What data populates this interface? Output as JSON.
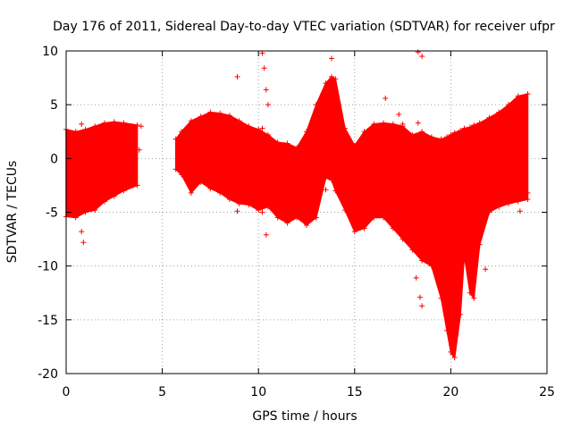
{
  "chart_data": {
    "type": "scatter",
    "title": "Day 176 of 2011, Sidereal Day-to-day VTEC variation (SDTVAR) for receiver ufpr",
    "xlabel": "GPS time / hours",
    "ylabel": "SDTVAR / TECUs",
    "xlim": [
      0,
      25
    ],
    "ylim": [
      -20,
      10
    ],
    "grid": true,
    "x_ticks": [
      "0",
      "5",
      "10",
      "15",
      "20",
      "25"
    ],
    "y_ticks": [
      "10",
      "5",
      "0",
      "-5",
      "-10",
      "-15",
      "-20"
    ],
    "series": [
      {
        "name": "SDTVAR",
        "color": "#ff0000",
        "marker": "plus",
        "band_x": [
          0.0,
          0.5,
          1.0,
          1.5,
          2.0,
          2.5,
          3.0,
          3.7,
          5.7,
          6.0,
          6.5,
          7.0,
          7.5,
          8.0,
          8.5,
          9.0,
          9.5,
          10.0,
          10.5,
          11.0,
          11.5,
          12.0,
          12.5,
          13.0,
          13.5,
          13.8,
          14.0,
          14.5,
          15.0,
          15.5,
          16.0,
          16.5,
          17.0,
          17.5,
          18.0,
          18.5,
          19.0,
          19.5,
          19.8,
          20.0,
          20.2,
          20.5,
          20.7,
          21.0,
          21.2,
          21.5,
          22.0,
          22.5,
          23.0,
          23.5,
          24.0
        ],
        "band_upper": [
          2.7,
          2.5,
          2.7,
          3.0,
          3.3,
          3.4,
          3.3,
          3.1,
          1.8,
          2.5,
          3.5,
          3.9,
          4.3,
          4.2,
          4.0,
          3.5,
          3.0,
          2.7,
          2.2,
          1.5,
          1.4,
          1.0,
          2.5,
          5.0,
          7.0,
          7.6,
          7.4,
          2.8,
          1.2,
          2.5,
          3.2,
          3.3,
          3.2,
          3.0,
          2.2,
          2.5,
          2.0,
          1.8,
          2.0,
          2.2,
          2.4,
          2.6,
          2.8,
          2.9,
          3.1,
          3.3,
          3.8,
          4.3,
          5.0,
          5.8,
          6.0
        ],
        "band_lower": [
          -5.4,
          -5.5,
          -5.0,
          -4.8,
          -4.0,
          -3.5,
          -3.0,
          -2.5,
          -1.0,
          -1.5,
          -3.2,
          -2.2,
          -2.8,
          -3.2,
          -3.8,
          -4.2,
          -4.3,
          -4.8,
          -4.5,
          -5.5,
          -6.0,
          -5.5,
          -6.2,
          -5.5,
          -1.8,
          -2.0,
          -3.0,
          -4.8,
          -6.8,
          -6.5,
          -5.5,
          -5.5,
          -6.5,
          -7.5,
          -8.5,
          -9.5,
          -10.0,
          -13.0,
          -16.0,
          -18.0,
          -18.5,
          -14.5,
          -9.0,
          -12.5,
          -13.0,
          -8.0,
          -5.0,
          -4.5,
          -4.2,
          -4.0,
          -3.8
        ],
        "outliers_x": [
          0.8,
          0.9,
          0.8,
          3.9,
          3.8,
          8.9,
          8.9,
          10.2,
          10.3,
          10.4,
          10.2,
          10.4,
          10.5,
          10.2,
          13.8,
          13.5,
          16.6,
          17.3,
          17.5,
          18.3,
          18.5,
          18.2,
          18.4,
          18.5,
          18.3,
          20.1,
          21.8,
          23.8,
          24.0,
          23.6
        ],
        "outliers_y": [
          -6.8,
          -7.8,
          3.2,
          3.0,
          0.8,
          7.6,
          -4.9,
          9.8,
          8.4,
          6.4,
          -5.0,
          -7.1,
          5.0,
          2.8,
          9.3,
          -2.9,
          5.6,
          4.1,
          3.2,
          9.9,
          9.5,
          -11.1,
          -12.9,
          -13.7,
          3.3,
          -18.2,
          -10.3,
          4.3,
          -3.2,
          -4.9
        ]
      }
    ]
  }
}
